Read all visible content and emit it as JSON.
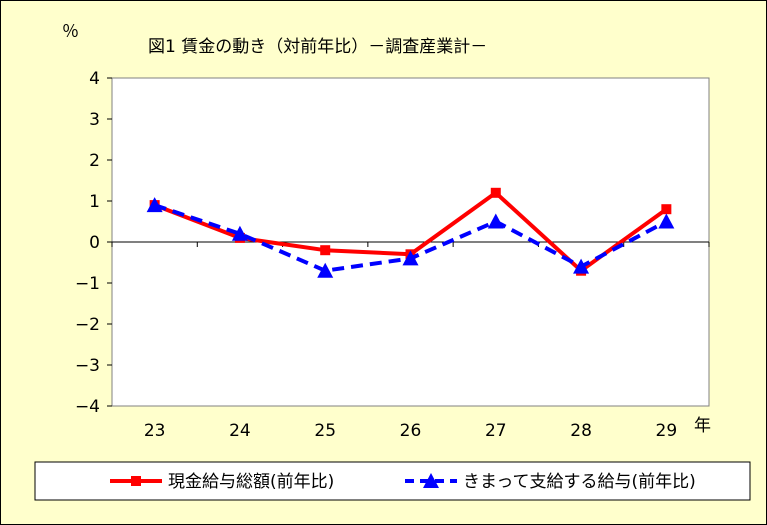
{
  "chart_data": {
    "type": "line",
    "title": "図1 賃金の動き（対前年比）－調査産業計－",
    "ylabel": "％",
    "xlabel": "年",
    "categories": [
      "23",
      "24",
      "25",
      "26",
      "27",
      "28",
      "29"
    ],
    "ylim": [
      -4,
      4
    ],
    "yticks": [
      "4",
      "3",
      "2",
      "1",
      "0",
      "−1",
      "−2",
      "−3",
      "−4"
    ],
    "ytick_values": [
      4,
      3,
      2,
      1,
      0,
      -1,
      -2,
      -3,
      -4
    ],
    "grid": false,
    "legend_position": "bottom",
    "series": [
      {
        "name": "現金給与総額(前年比)",
        "values": [
          0.9,
          0.1,
          -0.2,
          -0.3,
          1.2,
          -0.7,
          0.8
        ],
        "color": "#ff0000",
        "marker": "square",
        "line_style": "solid"
      },
      {
        "name": "きまって支給する給与(前年比)",
        "values": [
          0.9,
          0.2,
          -0.7,
          -0.4,
          0.5,
          -0.6,
          0.5
        ],
        "color": "#0000ff",
        "marker": "triangle",
        "line_style": "dashed"
      }
    ]
  }
}
